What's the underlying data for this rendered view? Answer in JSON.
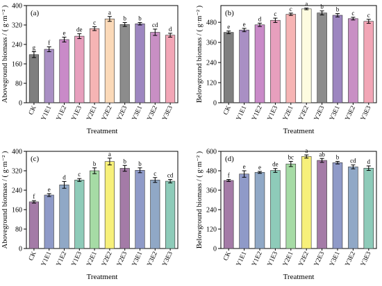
{
  "colors": {
    "axis": "#000000",
    "error_bar": "#000000",
    "bar_stroke": "#333333"
  },
  "chart_data": [
    {
      "type": "bar",
      "panel_label": "(a)",
      "categories": [
        "CK",
        "Y1E1",
        "Y1E2",
        "Y1E3",
        "Y2E1",
        "Y2E2",
        "Y2E3",
        "Y3E1",
        "Y3E2",
        "Y3E3"
      ],
      "values": [
        198,
        220,
        260,
        274,
        305,
        345,
        322,
        325,
        290,
        278
      ],
      "errors": [
        12,
        10,
        10,
        10,
        8,
        10,
        8,
        5,
        13,
        8
      ],
      "letters": [
        "g",
        "f",
        "e",
        "de",
        "c",
        "a",
        "b",
        "b",
        "cd",
        "d"
      ],
      "colors": [
        "#7f7f7f",
        "#a98fc4",
        "#c98ac8",
        "#e79fbd",
        "#f6b4b4",
        "#fbd9b8",
        "#8c8c8c",
        "#9d86c0",
        "#c88fc4",
        "#f2a6b6"
      ],
      "xlabel": "Treatment",
      "ylabel": "Aboveground biomass / ( g·m⁻² )",
      "ylim": [
        0,
        400
      ],
      "yticks": [
        "0",
        "80",
        "160",
        "240",
        "320",
        "400"
      ],
      "grid": false
    },
    {
      "type": "bar",
      "panel_label": "(b)",
      "categories": [
        "CK",
        "Y1E1",
        "Y1E2",
        "Y1E3",
        "Y2E1",
        "Y2E2",
        "Y2E3",
        "Y3E1",
        "Y3E2",
        "Y3E3"
      ],
      "values": [
        420,
        434,
        465,
        492,
        528,
        560,
        536,
        522,
        502,
        486
      ],
      "errors": [
        8,
        10,
        10,
        13,
        7,
        5,
        12,
        10,
        8,
        12
      ],
      "letters": [
        "e",
        "e",
        "d",
        "c",
        "c",
        "a",
        "b",
        "b",
        "c",
        "c"
      ],
      "colors": [
        "#7f7f7f",
        "#a98fc4",
        "#c98ac8",
        "#e79fbd",
        "#f6b4b4",
        "#fdfbe0",
        "#8c8c8c",
        "#9d86c0",
        "#c88fc4",
        "#f2a6b6"
      ],
      "xlabel": "Treatment",
      "ylabel": "Belowground biomass / ( g·m⁻² )",
      "ylim": [
        0,
        580
      ],
      "yticks": [
        "0",
        "120",
        "240",
        "360",
        "480"
      ],
      "grid": false
    },
    {
      "type": "bar",
      "panel_label": "(c)",
      "categories": [
        "CK",
        "Y1E1",
        "Y1E2",
        "Y1E3",
        "Y2E1",
        "Y2E2",
        "Y2E3",
        "Y3E1",
        "Y3E2",
        "Y3E3"
      ],
      "values": [
        192,
        220,
        262,
        282,
        320,
        358,
        330,
        322,
        282,
        277
      ],
      "errors": [
        5,
        6,
        14,
        6,
        12,
        14,
        12,
        10,
        10,
        7
      ],
      "letters": [
        "f",
        "e",
        "d",
        "c",
        "b",
        "a",
        "b",
        "b",
        "c",
        "cd"
      ],
      "colors": [
        "#a47ba7",
        "#8f9ac8",
        "#90a8c6",
        "#8ecbb9",
        "#a6dba5",
        "#f7f07a",
        "#a47ba7",
        "#8f9ac8",
        "#90a8c6",
        "#8ecbb9"
      ],
      "xlabel": "Treatment",
      "ylabel": "Aboveground biomass / ( g·m⁻² )",
      "ylim": [
        0,
        400
      ],
      "yticks": [
        "0",
        "80",
        "160",
        "240",
        "320",
        "400"
      ],
      "grid": false
    },
    {
      "type": "bar",
      "panel_label": "(d)",
      "categories": [
        "CK",
        "Y1E1",
        "Y1E2",
        "Y1E3",
        "Y2E1",
        "Y2E2",
        "Y2E3",
        "Y3E1",
        "Y3E2",
        "Y3E3"
      ],
      "values": [
        420,
        460,
        470,
        482,
        522,
        568,
        544,
        530,
        504,
        496
      ],
      "errors": [
        6,
        20,
        6,
        12,
        16,
        10,
        12,
        8,
        12,
        14
      ],
      "letters": [
        "f",
        "e",
        "e",
        "de",
        "bc",
        "a",
        "ab",
        "b",
        "cd",
        "d"
      ],
      "colors": [
        "#a47ba7",
        "#8f9ac8",
        "#90a8c6",
        "#8ecbb9",
        "#a6dba5",
        "#f7f07a",
        "#a47ba7",
        "#8f9ac8",
        "#90a8c6",
        "#8ecbb9"
      ],
      "xlabel": "Treatment",
      "ylabel": "Belowground biomass / ( g·m⁻² )",
      "ylim": [
        0,
        600
      ],
      "yticks": [
        "0",
        "120",
        "240",
        "360",
        "480",
        "600"
      ],
      "grid": false
    }
  ]
}
